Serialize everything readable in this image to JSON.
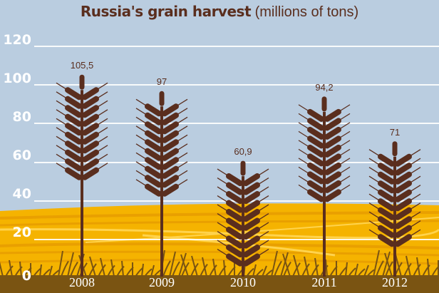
{
  "header": {
    "title_bold": "Russia's grain harvest",
    "title_units": "(millions of tons)"
  },
  "colors": {
    "sky": "#bacde0",
    "field": "#f5b300",
    "field_dark": "#e9a000",
    "field_light": "#ffd34d",
    "ground": "#7a5412",
    "grain": "#5a2e1e",
    "title": "#5a2e1e",
    "gridline": "#ffffff"
  },
  "chart_data": {
    "type": "bar",
    "title": "Russia's grain harvest (millions of tons)",
    "xlabel": "",
    "ylabel": "millions of tons",
    "categories": [
      "2008",
      "2009",
      "2010",
      "2011",
      "2012"
    ],
    "values": [
      105.5,
      97,
      60.9,
      94.2,
      71
    ],
    "value_labels": [
      "105,5",
      "97",
      "60,9",
      "94,2",
      "71"
    ],
    "yticks": [
      "0",
      "20",
      "40",
      "60",
      "80",
      "100",
      "120"
    ],
    "ylim": [
      0,
      120
    ],
    "grid": true,
    "legend": null,
    "marker": "wheat-stalk pictogram"
  }
}
